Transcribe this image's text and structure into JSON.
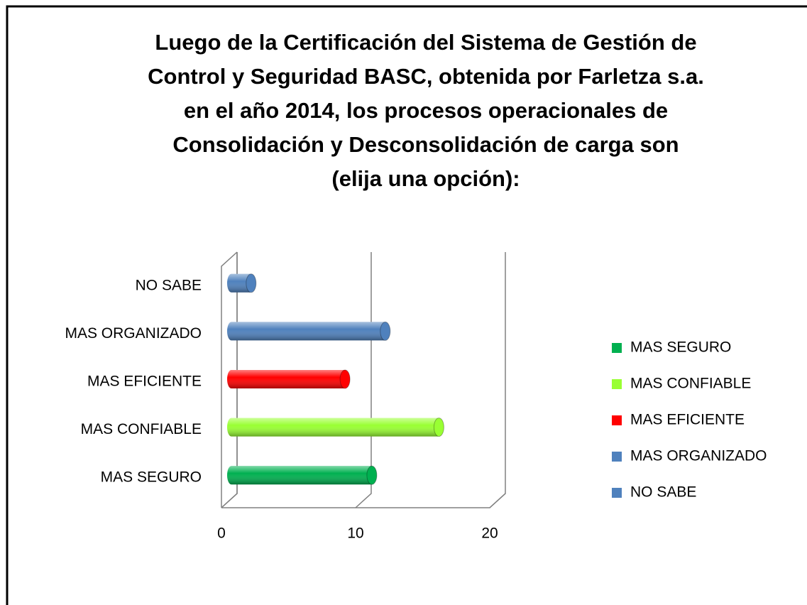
{
  "chart_data": {
    "type": "bar3d_horizontal",
    "title": [
      "Luego de la Certificación del Sistema de Gestión de",
      "Control y Seguridad BASC, obtenida por Farletza s.a.",
      "en el año 2014, los procesos operacionales de",
      "Consolidación y Desconsolidación de carga son",
      "(elija una opción):"
    ],
    "categories": [
      "MAS SEGURO",
      "MAS CONFIABLE",
      "MAS EFICIENTE",
      "MAS ORGANIZADO",
      "NO SABE"
    ],
    "values": [
      11,
      16,
      9,
      12,
      2
    ],
    "colors": [
      "#00b050",
      "#99ff33",
      "#ff0000",
      "#4f81bd",
      "#4f81bd"
    ],
    "xlim": [
      0,
      20
    ],
    "xticks": [
      0,
      10,
      20
    ],
    "grid": true,
    "legend": "right"
  }
}
